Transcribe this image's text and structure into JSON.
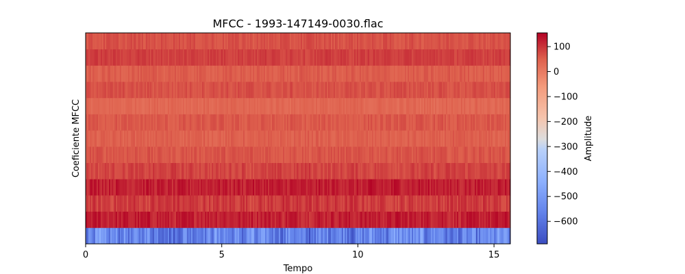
{
  "chart_data": {
    "type": "heatmap",
    "title": "MFCC - 1993-147149-0030.flac",
    "xlabel": "Tempo",
    "ylabel": "Coeficiente MFCC",
    "xlim": [
      0,
      15.6
    ],
    "xticks": [
      0,
      5,
      10,
      15
    ],
    "n_coefficients": 13,
    "colorbar": {
      "label": "Amplitude",
      "range": [
        -690,
        155
      ],
      "ticks": [
        100,
        0,
        -100,
        -200,
        -300,
        -400,
        -500,
        -600
      ],
      "tick_labels": [
        "100",
        "0",
        "−100",
        "−200",
        "−300",
        "−400",
        "−500",
        "−600"
      ],
      "colormap": "coolwarm"
    },
    "coefficient_mean_amplitude": [
      -560,
      125,
      95,
      125,
      85,
      65,
      50,
      60,
      40,
      70,
      55,
      90,
      70
    ],
    "coefficient_variation": [
      95,
      30,
      30,
      30,
      22,
      18,
      18,
      18,
      18,
      18,
      18,
      18,
      18
    ],
    "colors": {
      "low": "#3b4cc0",
      "mid": "#dddddd",
      "high": "#b40426"
    }
  }
}
